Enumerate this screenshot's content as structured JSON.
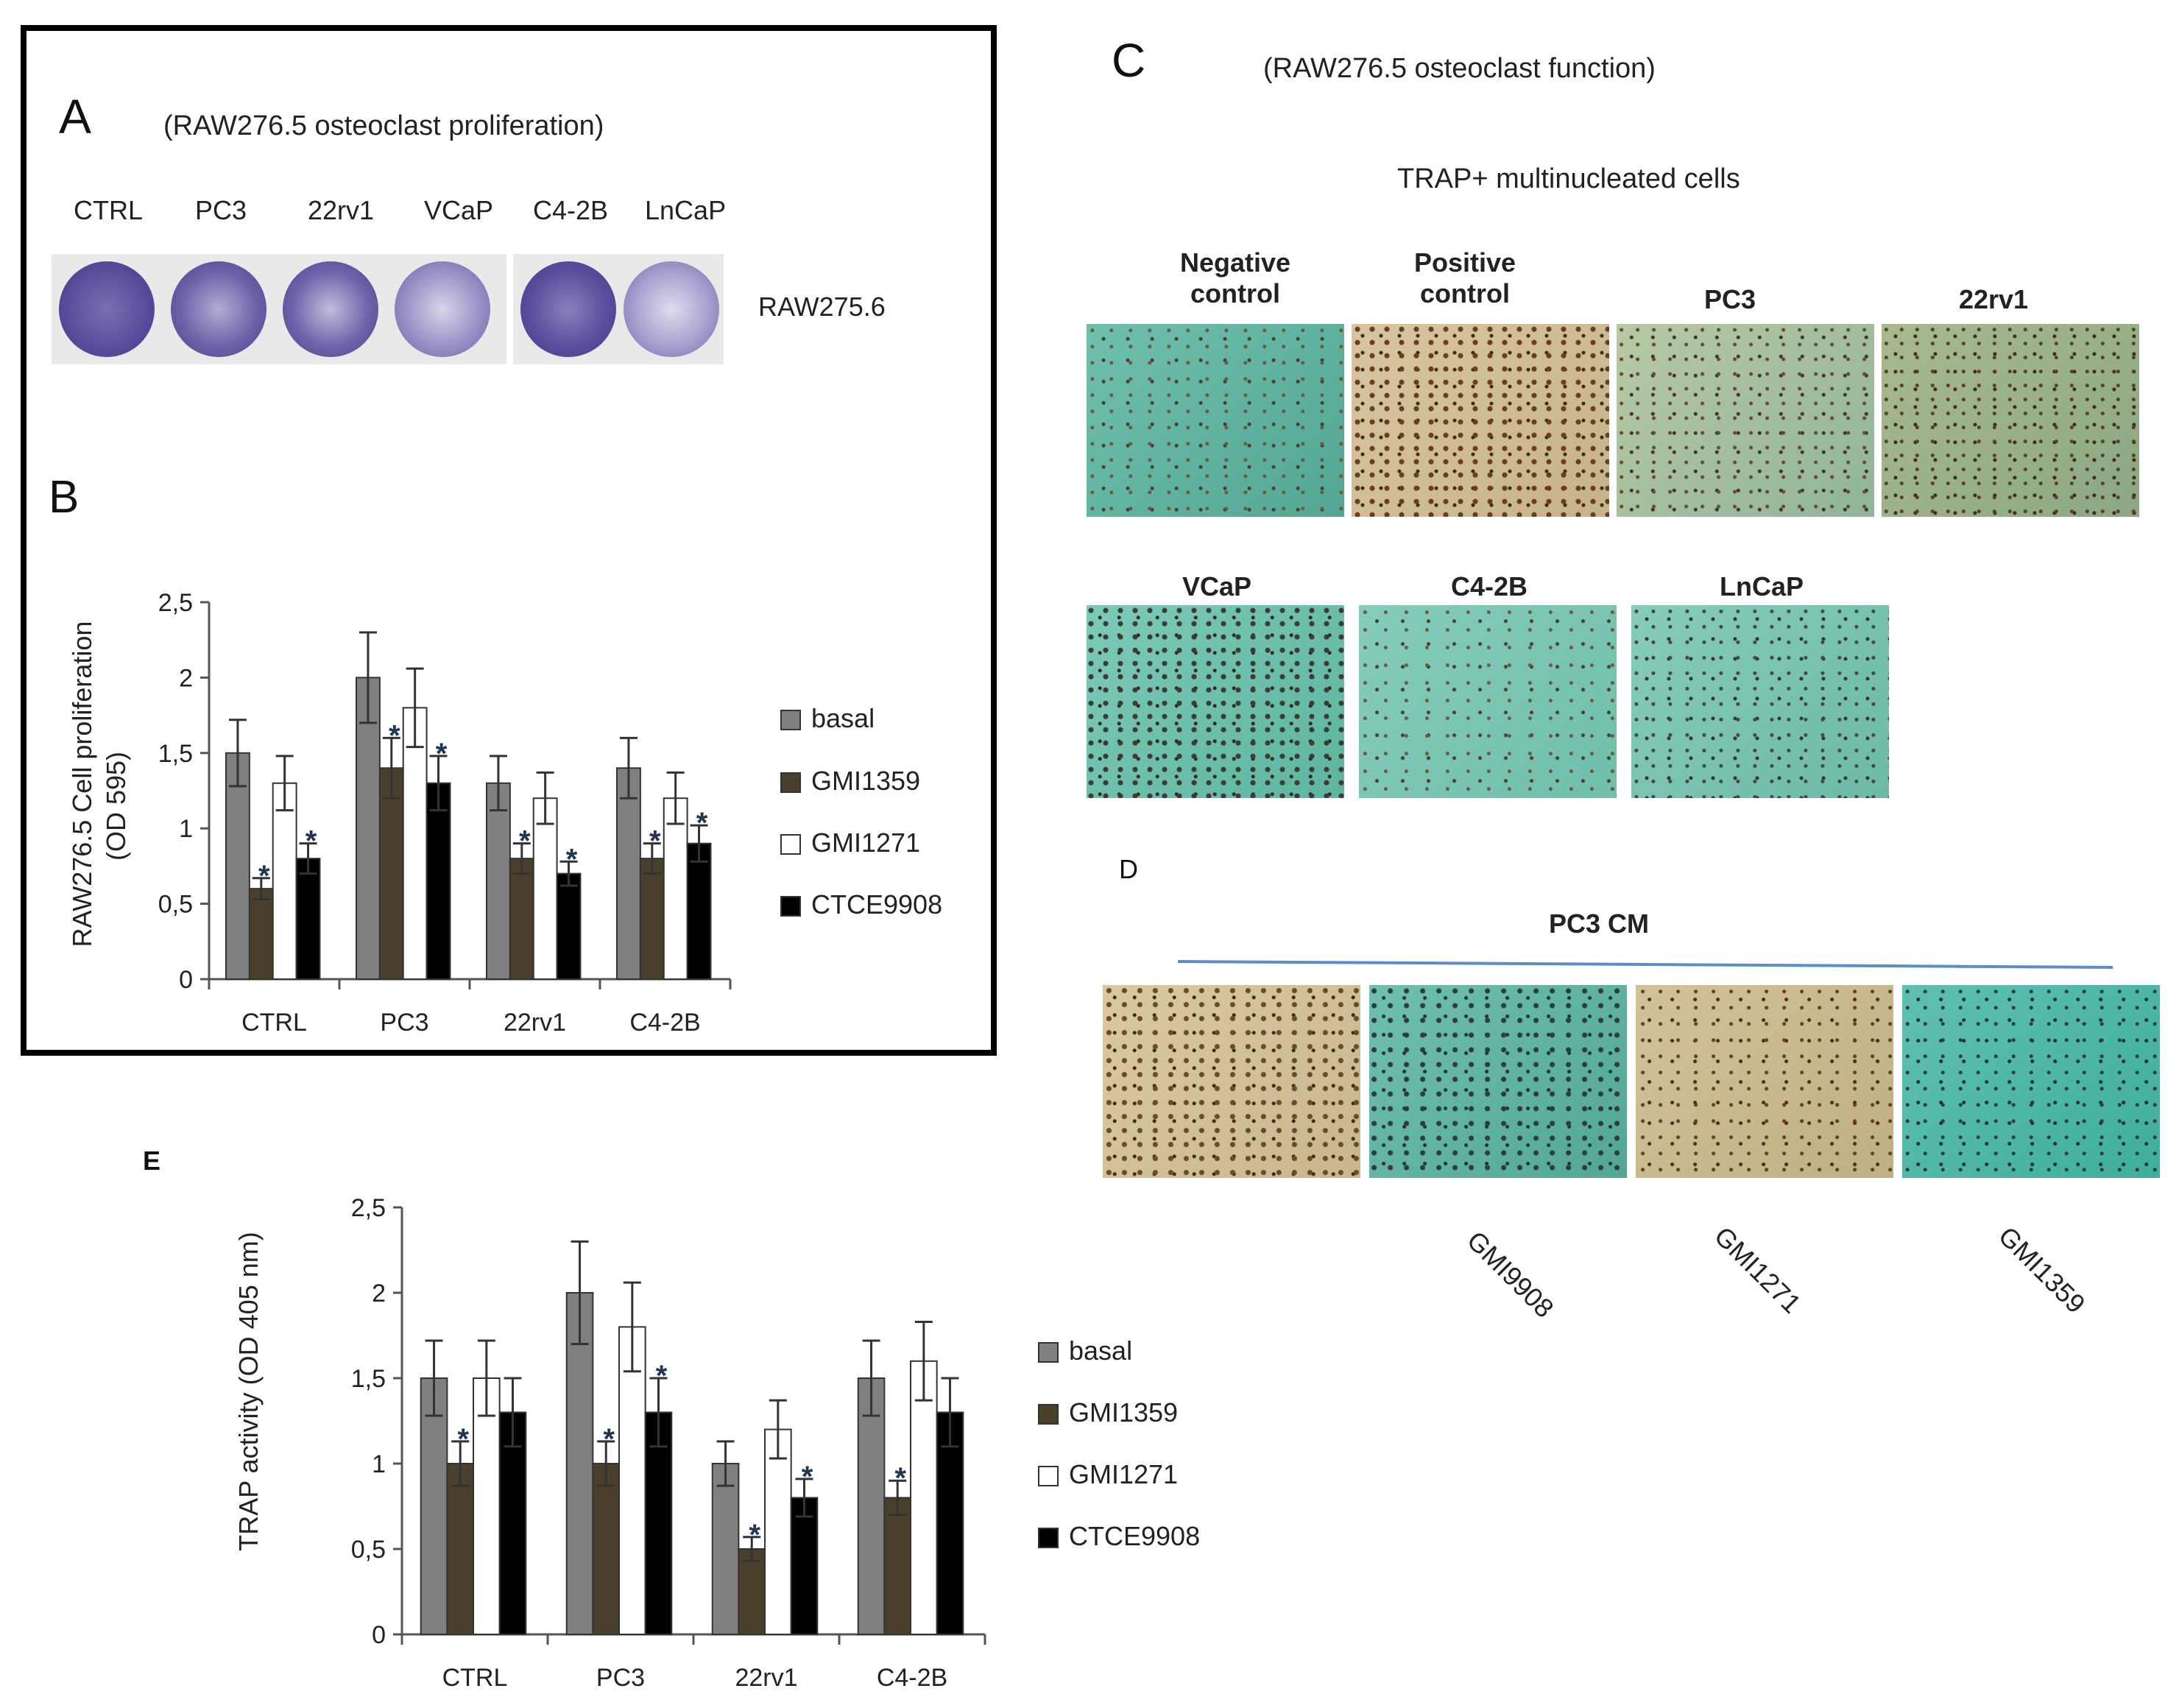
{
  "panelA": {
    "letter": "A",
    "title": "(RAW276.5 osteoclast proliferation)",
    "wells": [
      "CTRL",
      "PC3",
      "22rv1",
      "VCaP",
      "C4-2B",
      "LnCaP"
    ],
    "row_label": "RAW275.6"
  },
  "panelB": {
    "letter": "B"
  },
  "panelC": {
    "letter": "C",
    "title": "(RAW276.5 osteoclast function)",
    "subtitle": "TRAP+ multinucleated cells",
    "row1": [
      {
        "line1": "Negative",
        "line2": "control"
      },
      {
        "line1": "Positive",
        "line2": "control"
      },
      {
        "line1": "PC3",
        "line2": ""
      },
      {
        "line1": "22rv1",
        "line2": ""
      }
    ],
    "row2": [
      "VCaP",
      "C4-2B",
      "LnCaP"
    ]
  },
  "panelD": {
    "letter": "D",
    "title": "PC3 CM",
    "treatments": [
      "GMI9908",
      "GMI1271",
      "GMI1359"
    ]
  },
  "panelE": {
    "letter": "E"
  },
  "colors": {
    "basal": "#808080",
    "GMI1359": "#4a3f2b",
    "GMI1271": "#ffffff",
    "CTCE9908": "#000000",
    "micro_green": "#5fb3a1",
    "micro_tan": "#d9c9a2",
    "plate_purple": "#5c4f9e"
  },
  "chart_data": [
    {
      "id": "B",
      "type": "bar",
      "ylabel": "RAW276.5 Cell proliferation (OD 595)",
      "ylabel_line1": "RAW276.5 Cell proliferation",
      "ylabel_line2": "(OD 595)",
      "ylim": [
        0,
        2.5
      ],
      "yticks": [
        "0",
        "0,5",
        "1",
        "1,5",
        "2",
        "2,5"
      ],
      "categories": [
        "CTRL",
        "PC3",
        "22rv1",
        "C4-2B"
      ],
      "series": [
        {
          "name": "basal",
          "values": [
            1.5,
            2.0,
            1.3,
            1.4
          ],
          "errors": [
            0.22,
            0.3,
            0.18,
            0.2
          ],
          "star": [
            false,
            false,
            false,
            false
          ]
        },
        {
          "name": "GMI1359",
          "values": [
            0.6,
            1.4,
            0.8,
            0.8
          ],
          "errors": [
            0.07,
            0.2,
            0.1,
            0.1
          ],
          "star": [
            true,
            true,
            true,
            true
          ]
        },
        {
          "name": "GMI1271",
          "values": [
            1.3,
            1.8,
            1.2,
            1.2
          ],
          "errors": [
            0.18,
            0.26,
            0.17,
            0.17
          ],
          "star": [
            false,
            false,
            false,
            false
          ]
        },
        {
          "name": "CTCE9908",
          "values": [
            0.8,
            1.3,
            0.7,
            0.9
          ],
          "errors": [
            0.1,
            0.18,
            0.08,
            0.12
          ],
          "star": [
            true,
            true,
            true,
            true
          ]
        }
      ],
      "star_label": "*",
      "legend": [
        "basal",
        "GMI1359",
        "GMI1271",
        "CTCE9908"
      ]
    },
    {
      "id": "E",
      "type": "bar",
      "ylabel": "TRAP activity (OD 405 nm)",
      "ylabel_line1": "TRAP activity (OD 405 nm)",
      "ylim": [
        0,
        2.5
      ],
      "yticks": [
        "0",
        "0,5",
        "1",
        "1,5",
        "2",
        "2,5"
      ],
      "categories": [
        "CTRL",
        "PC3",
        "22rv1",
        "C4-2B"
      ],
      "series": [
        {
          "name": "basal",
          "values": [
            1.5,
            2.0,
            1.0,
            1.5
          ],
          "errors": [
            0.22,
            0.3,
            0.13,
            0.22
          ],
          "star": [
            false,
            false,
            false,
            false
          ]
        },
        {
          "name": "GMI1359",
          "values": [
            1.0,
            1.0,
            0.5,
            0.8
          ],
          "errors": [
            0.13,
            0.13,
            0.07,
            0.1
          ],
          "star": [
            true,
            true,
            true,
            true
          ]
        },
        {
          "name": "GMI1271",
          "values": [
            1.5,
            1.8,
            1.2,
            1.6
          ],
          "errors": [
            0.22,
            0.26,
            0.17,
            0.23
          ],
          "star": [
            false,
            false,
            false,
            false
          ]
        },
        {
          "name": "CTCE9908",
          "values": [
            1.3,
            1.3,
            0.8,
            1.3
          ],
          "errors": [
            0.2,
            0.2,
            0.11,
            0.2
          ],
          "star": [
            false,
            true,
            true,
            false
          ]
        }
      ],
      "star_label": "*",
      "legend": [
        "basal",
        "GMI1359",
        "GMI1271",
        "CTCE9908"
      ]
    }
  ]
}
